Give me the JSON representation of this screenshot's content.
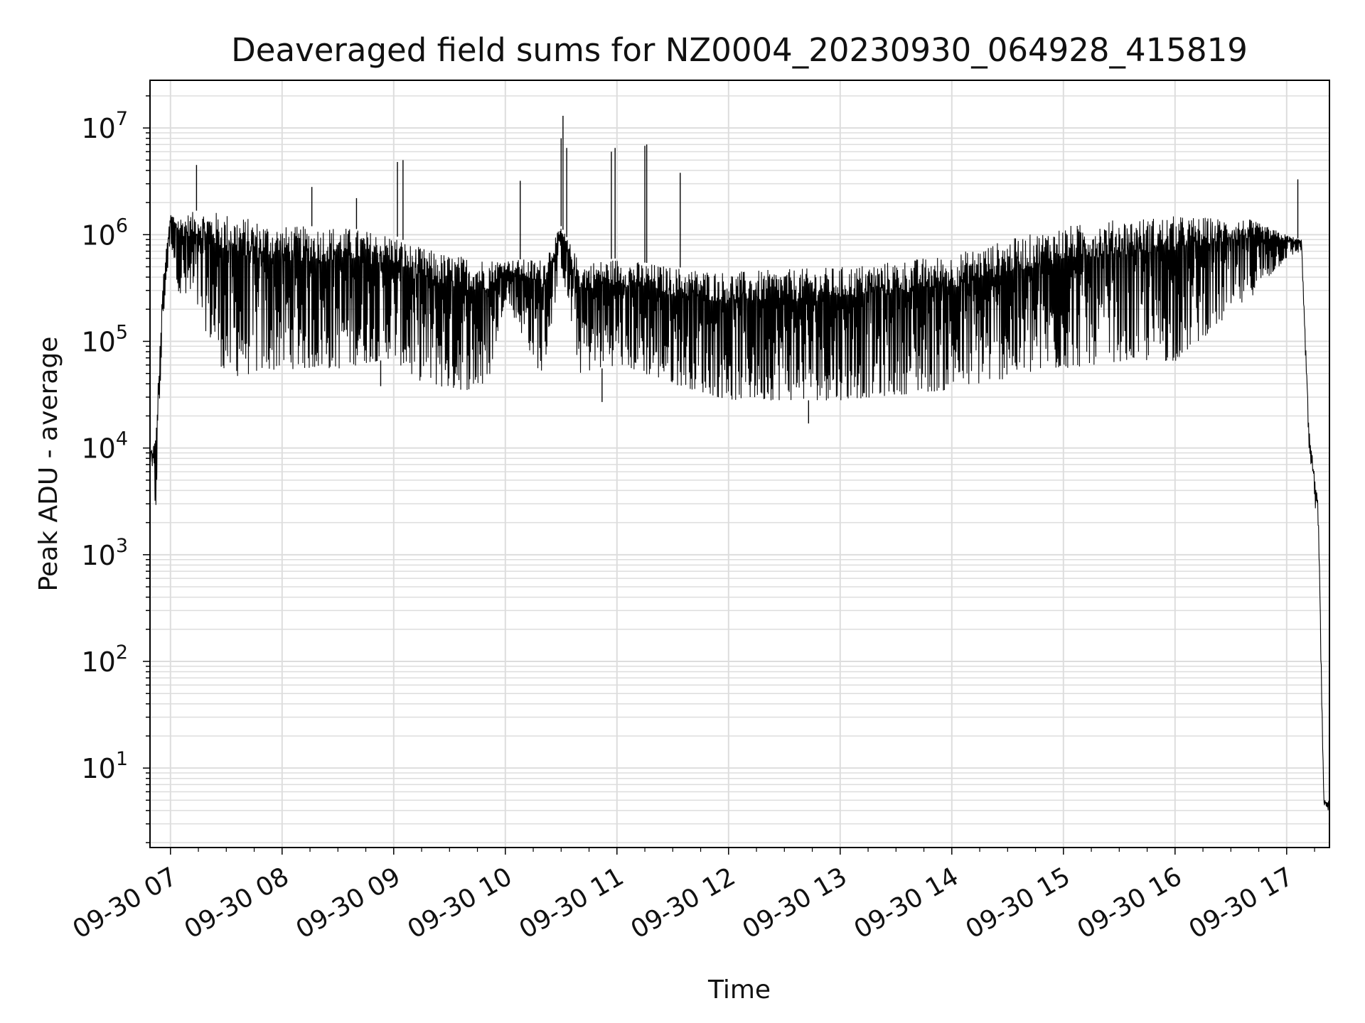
{
  "chart_data": {
    "type": "line",
    "title": "Deaveraged field sums for NZ0004_20230930_064928_415819",
    "xlabel": "Time",
    "ylabel": "Peak ADU - average",
    "yscale": "log",
    "ylim": [
      1.8,
      28000000
    ],
    "xlim": [
      "2023-09-30 06:49",
      "2023-09-30 17:23"
    ],
    "grid": true,
    "major_grid_color": "#dddddd",
    "line_color": "#000000",
    "x_ticks": [
      {
        "t": "2023-09-30 07:00",
        "label": "09-30 07"
      },
      {
        "t": "2023-09-30 08:00",
        "label": "09-30 08"
      },
      {
        "t": "2023-09-30 09:00",
        "label": "09-30 09"
      },
      {
        "t": "2023-09-30 10:00",
        "label": "09-30 10"
      },
      {
        "t": "2023-09-30 11:00",
        "label": "09-30 11"
      },
      {
        "t": "2023-09-30 12:00",
        "label": "09-30 12"
      },
      {
        "t": "2023-09-30 13:00",
        "label": "09-30 13"
      },
      {
        "t": "2023-09-30 14:00",
        "label": "09-30 14"
      },
      {
        "t": "2023-09-30 15:00",
        "label": "09-30 15"
      },
      {
        "t": "2023-09-30 16:00",
        "label": "09-30 16"
      },
      {
        "t": "2023-09-30 17:00",
        "label": "09-30 17"
      }
    ],
    "y_ticks": [
      {
        "value": 10,
        "base": "10",
        "exp": "1"
      },
      {
        "value": 100,
        "base": "10",
        "exp": "2"
      },
      {
        "value": 1000,
        "base": "10",
        "exp": "3"
      },
      {
        "value": 10000,
        "base": "10",
        "exp": "4"
      },
      {
        "value": 100000,
        "base": "10",
        "exp": "5"
      },
      {
        "value": 1000000,
        "base": "10",
        "exp": "6"
      },
      {
        "value": 10000000,
        "base": "10",
        "exp": "7"
      }
    ],
    "envelope": [
      {
        "t": "2023-09-30 06:49",
        "hi": 9000,
        "lo": 8000
      },
      {
        "t": "2023-09-30 06:52",
        "hi": 13000,
        "lo": 2200
      },
      {
        "t": "2023-09-30 06:56",
        "hi": 400000,
        "lo": 150000
      },
      {
        "t": "2023-09-30 07:00",
        "hi": 1600000,
        "lo": 900000
      },
      {
        "t": "2023-09-30 07:05",
        "hi": 1500000,
        "lo": 250000
      },
      {
        "t": "2023-09-30 07:15",
        "hi": 1700000,
        "lo": 180000
      },
      {
        "t": "2023-09-30 07:30",
        "hi": 1600000,
        "lo": 45000
      },
      {
        "t": "2023-09-30 08:00",
        "hi": 1200000,
        "lo": 55000
      },
      {
        "t": "2023-09-30 08:30",
        "hi": 1200000,
        "lo": 55000
      },
      {
        "t": "2023-09-30 09:00",
        "hi": 1000000,
        "lo": 70000
      },
      {
        "t": "2023-09-30 09:10",
        "hi": 800000,
        "lo": 45000
      },
      {
        "t": "2023-09-30 09:30",
        "hi": 650000,
        "lo": 35000
      },
      {
        "t": "2023-09-30 09:50",
        "hi": 600000,
        "lo": 35000
      },
      {
        "t": "2023-09-30 10:00",
        "hi": 580000,
        "lo": 250000
      },
      {
        "t": "2023-09-30 10:20",
        "hi": 600000,
        "lo": 45000
      },
      {
        "t": "2023-09-30 10:30",
        "hi": 1200000,
        "lo": 500000
      },
      {
        "t": "2023-09-30 10:40",
        "hi": 550000,
        "lo": 50000
      },
      {
        "t": "2023-09-30 11:00",
        "hi": 600000,
        "lo": 60000
      },
      {
        "t": "2023-09-30 11:30",
        "hi": 500000,
        "lo": 40000
      },
      {
        "t": "2023-09-30 12:00",
        "hi": 450000,
        "lo": 28000
      },
      {
        "t": "2023-09-30 13:00",
        "hi": 500000,
        "lo": 28000
      },
      {
        "t": "2023-09-30 14:00",
        "hi": 650000,
        "lo": 35000
      },
      {
        "t": "2023-09-30 14:30",
        "hi": 900000,
        "lo": 45000
      },
      {
        "t": "2023-09-30 15:00",
        "hi": 1200000,
        "lo": 55000
      },
      {
        "t": "2023-09-30 15:30",
        "hi": 1400000,
        "lo": 65000
      },
      {
        "t": "2023-09-30 16:00",
        "hi": 1500000,
        "lo": 65000
      },
      {
        "t": "2023-09-30 16:40",
        "hi": 1400000,
        "lo": 250000
      },
      {
        "t": "2023-09-30 17:00",
        "hi": 1000000,
        "lo": 600000
      },
      {
        "t": "2023-09-30 17:08",
        "hi": 900000,
        "lo": 700000
      },
      {
        "t": "2023-09-30 17:12",
        "hi": 15000,
        "lo": 9000
      },
      {
        "t": "2023-09-30 17:17",
        "hi": 3000,
        "lo": 1500
      },
      {
        "t": "2023-09-30 17:20",
        "hi": 5,
        "lo": 4
      },
      {
        "t": "2023-09-30 17:23",
        "hi": 5,
        "lo": 4
      }
    ],
    "spikes": [
      {
        "t": "2023-09-30 07:14",
        "value": 4500000
      },
      {
        "t": "2023-09-30 08:16",
        "value": 2800000
      },
      {
        "t": "2023-09-30 08:40",
        "value": 2200000
      },
      {
        "t": "2023-09-30 09:02",
        "value": 4800000
      },
      {
        "t": "2023-09-30 09:05",
        "value": 5000000
      },
      {
        "t": "2023-09-30 10:08",
        "value": 3200000
      },
      {
        "t": "2023-09-30 10:30",
        "value": 8000000
      },
      {
        "t": "2023-09-30 10:31",
        "value": 13000000
      },
      {
        "t": "2023-09-30 10:33",
        "value": 6500000
      },
      {
        "t": "2023-09-30 10:57",
        "value": 6000000
      },
      {
        "t": "2023-09-30 10:59",
        "value": 6500000
      },
      {
        "t": "2023-09-30 11:15",
        "value": 6800000
      },
      {
        "t": "2023-09-30 11:16",
        "value": 7000000
      },
      {
        "t": "2023-09-30 11:34",
        "value": 3800000
      },
      {
        "t": "2023-09-30 17:06",
        "value": 3300000
      }
    ],
    "dips": [
      {
        "t": "2023-09-30 12:43",
        "value": 17000
      },
      {
        "t": "2023-09-30 10:52",
        "value": 27000
      },
      {
        "t": "2023-09-30 08:53",
        "value": 38000
      }
    ]
  }
}
